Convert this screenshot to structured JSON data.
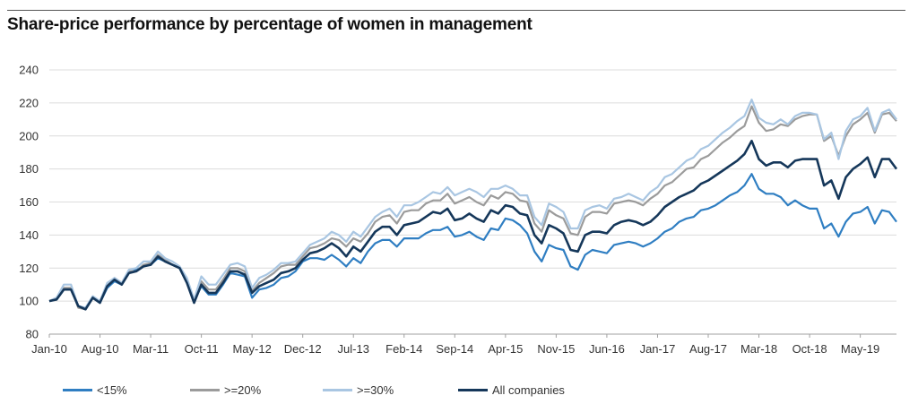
{
  "chart_data": {
    "type": "line",
    "title": "Share-price performance by percentage of women in management",
    "xlabel": "",
    "ylabel": "",
    "ylim": [
      80,
      240
    ],
    "yticks": [
      80,
      100,
      120,
      140,
      160,
      180,
      200,
      220,
      240
    ],
    "grid": "horizontal",
    "legend_position": "bottom",
    "x_tick_labels": [
      "Jan-10",
      "Aug-10",
      "Mar-11",
      "Oct-11",
      "May-12",
      "Dec-12",
      "Jul-13",
      "Feb-14",
      "Sep-14",
      "Apr-15",
      "Nov-15",
      "Jun-16",
      "Jan-17",
      "Aug-17",
      "Mar-18",
      "Oct-18",
      "May-19"
    ],
    "x_start": "Jan-10",
    "x_end": "Sep-19",
    "series": [
      {
        "name": "<15%",
        "color": "#2f7ec2",
        "width": 2.2,
        "values": [
          100,
          101,
          107,
          107,
          97,
          95,
          102,
          99,
          108,
          112,
          110,
          117,
          119,
          121,
          122,
          126,
          124,
          122,
          120,
          111,
          100,
          109,
          104,
          104,
          110,
          117,
          116,
          115,
          102,
          107,
          108,
          110,
          114,
          115,
          118,
          124,
          126,
          126,
          125,
          128,
          125,
          121,
          126,
          123,
          130,
          135,
          137,
          137,
          133,
          138,
          138,
          138,
          141,
          143,
          143,
          145,
          139,
          140,
          142,
          139,
          137,
          144,
          143,
          150,
          149,
          146,
          141,
          130,
          124,
          134,
          132,
          131,
          121,
          119,
          128,
          131,
          130,
          129,
          134,
          135,
          136,
          135,
          133,
          135,
          138,
          142,
          144,
          148,
          150,
          151,
          155,
          156,
          158,
          161,
          164,
          166,
          170,
          177,
          168,
          165,
          165,
          163,
          158,
          161,
          158,
          156,
          156,
          144,
          147,
          139,
          148,
          153,
          154,
          157,
          147,
          155,
          154,
          148
        ]
      },
      {
        "name": ">=20%",
        "color": "#9b9b9b",
        "width": 2.2,
        "values": [
          100,
          102,
          108,
          108,
          96,
          95,
          102,
          100,
          110,
          114,
          111,
          118,
          118,
          122,
          123,
          128,
          125,
          122,
          120,
          112,
          99,
          112,
          107,
          107,
          113,
          120,
          120,
          118,
          106,
          111,
          114,
          117,
          121,
          122,
          122,
          127,
          132,
          133,
          135,
          138,
          137,
          133,
          138,
          136,
          141,
          148,
          151,
          152,
          147,
          154,
          155,
          155,
          159,
          161,
          161,
          165,
          159,
          161,
          163,
          160,
          158,
          164,
          162,
          166,
          165,
          161,
          160,
          147,
          142,
          155,
          152,
          150,
          141,
          140,
          151,
          154,
          154,
          153,
          159,
          160,
          161,
          160,
          158,
          162,
          165,
          170,
          172,
          176,
          180,
          181,
          186,
          188,
          192,
          196,
          199,
          203,
          206,
          218,
          208,
          203,
          204,
          207,
          206,
          210,
          212,
          213,
          213,
          197,
          200,
          188,
          200,
          207,
          210,
          214,
          202,
          213,
          214,
          209
        ]
      },
      {
        "name": ">=30%",
        "color": "#a9c6e2",
        "width": 2.2,
        "values": [
          100,
          102,
          110,
          110,
          97,
          96,
          103,
          100,
          111,
          114,
          111,
          119,
          120,
          124,
          124,
          130,
          126,
          124,
          121,
          114,
          101,
          115,
          110,
          110,
          116,
          122,
          123,
          121,
          108,
          114,
          116,
          119,
          123,
          123,
          124,
          129,
          134,
          136,
          138,
          142,
          140,
          136,
          142,
          139,
          145,
          151,
          154,
          156,
          151,
          158,
          158,
          160,
          163,
          166,
          165,
          169,
          164,
          166,
          168,
          166,
          163,
          168,
          168,
          170,
          168,
          164,
          164,
          151,
          146,
          159,
          157,
          154,
          144,
          144,
          155,
          157,
          158,
          156,
          162,
          163,
          165,
          163,
          161,
          166,
          169,
          175,
          177,
          181,
          185,
          187,
          192,
          194,
          198,
          202,
          205,
          209,
          212,
          222,
          211,
          208,
          207,
          210,
          207,
          212,
          214,
          214,
          213,
          198,
          202,
          186,
          203,
          210,
          212,
          217,
          203,
          214,
          216,
          210
        ]
      },
      {
        "name": "All companies",
        "color": "#15375a",
        "width": 2.6,
        "values": [
          100,
          101,
          107,
          107,
          97,
          95,
          102,
          99,
          109,
          113,
          110,
          117,
          118,
          121,
          122,
          127,
          124,
          122,
          120,
          111,
          99,
          110,
          105,
          105,
          111,
          118,
          118,
          116,
          105,
          109,
          111,
          113,
          117,
          118,
          120,
          125,
          129,
          130,
          132,
          135,
          132,
          127,
          133,
          130,
          136,
          142,
          145,
          145,
          140,
          146,
          147,
          148,
          151,
          154,
          153,
          156,
          149,
          150,
          153,
          150,
          148,
          155,
          153,
          158,
          157,
          153,
          152,
          140,
          135,
          146,
          144,
          141,
          131,
          130,
          140,
          142,
          142,
          141,
          146,
          148,
          149,
          148,
          146,
          148,
          152,
          157,
          160,
          163,
          165,
          167,
          171,
          173,
          176,
          179,
          182,
          185,
          189,
          197,
          186,
          182,
          184,
          184,
          181,
          185,
          186,
          186,
          186,
          170,
          173,
          162,
          175,
          180,
          183,
          187,
          175,
          186,
          186,
          180
        ]
      }
    ]
  }
}
